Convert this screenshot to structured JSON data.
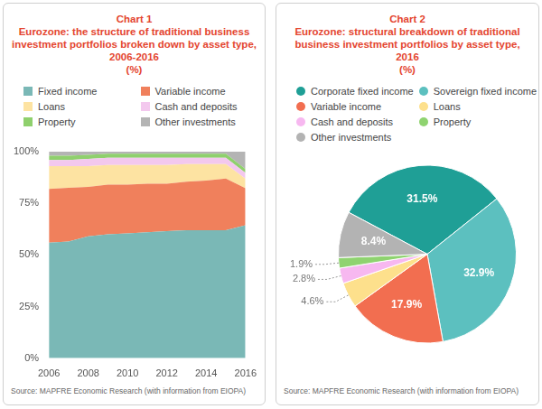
{
  "chart_data": [
    {
      "type": "area",
      "title": "Chart 1",
      "subtitle": [
        "Eurozone: the structure of traditional business investment portfolios broken down by asset type, 2006-2016",
        "(%)"
      ],
      "source": "Source: MAPFRE Economic Research (with information from EIOPA)",
      "stacked": true,
      "grid": false,
      "legend": "top",
      "categories": [
        "2006",
        null,
        "2008",
        null,
        "2010",
        null,
        "2012",
        null,
        "2014",
        null,
        "2016"
      ],
      "series": [
        {
          "name": "Fixed income",
          "color": "#7ab8b6",
          "values": [
            56,
            56.5,
            59,
            60,
            60.5,
            61,
            61.5,
            62,
            62,
            62,
            64.4
          ]
        },
        {
          "name": "Variable income",
          "color": "#f0805c",
          "values": [
            26,
            26,
            24,
            24,
            23.5,
            23.5,
            23,
            23.5,
            24,
            25,
            17.9
          ]
        },
        {
          "name": "Loans",
          "color": "#fde3a2",
          "values": [
            11,
            10.5,
            10,
            9.5,
            9.5,
            9,
            9,
            8.5,
            8,
            7,
            4.6
          ]
        },
        {
          "name": "Cash and deposits",
          "color": "#f3c8ee",
          "values": [
            3,
            3,
            3.5,
            3.5,
            3.5,
            3.5,
            3.5,
            3,
            3,
            3,
            2.8
          ]
        },
        {
          "name": "Property",
          "color": "#8fd06d",
          "values": [
            2,
            2,
            2,
            2,
            2,
            2,
            2,
            2,
            2,
            2,
            1.9
          ]
        },
        {
          "name": "Other investments",
          "color": "#b4b4b4",
          "values": [
            2,
            2,
            1.5,
            1,
            1,
            1,
            1,
            1,
            1,
            1,
            8.4
          ]
        }
      ],
      "ylim": [
        0,
        100
      ],
      "yticks": [
        {
          "value": 0,
          "label": "0%"
        },
        {
          "value": 25,
          "label": "25%"
        },
        {
          "value": 50,
          "label": "50%"
        },
        {
          "value": 75,
          "label": "75%"
        },
        {
          "value": 100,
          "label": "100%"
        }
      ]
    },
    {
      "type": "pie",
      "title": "Chart 2",
      "subtitle": [
        "Eurozone: structural breakdown of traditional business investment portfolios by asset type, 2016",
        "(%)"
      ],
      "source": "Source: MAPFRE Economic Research (with information from EIOPA)",
      "legend": "top",
      "data_labels": true,
      "categories": [
        "Corporate fixed income",
        "Sovereign fixed income",
        "Variable income",
        "Loans",
        "Cash and deposits",
        "Property",
        "Other investments"
      ],
      "values": [
        31.5,
        32.9,
        17.9,
        4.6,
        2.8,
        1.9,
        8.4
      ],
      "value_labels": [
        "31.5%",
        "32.9%",
        "17.9%",
        "4.6%",
        "2.8%",
        "1.9%",
        "8.4%"
      ],
      "colors": [
        "#1f9f96",
        "#5cc0bf",
        "#f26e50",
        "#fde08c",
        "#f7b8f0",
        "#8fd370",
        "#b3b3b3"
      ]
    }
  ]
}
